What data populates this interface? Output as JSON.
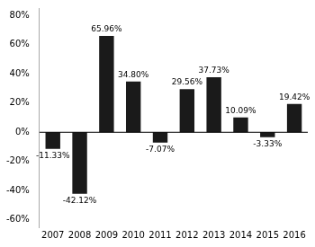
{
  "chart_data": {
    "type": "bar",
    "categories": [
      "2007",
      "2008",
      "2009",
      "2010",
      "2011",
      "2012",
      "2013",
      "2014",
      "2015",
      "2016"
    ],
    "values": [
      -11.33,
      -42.12,
      65.96,
      34.8,
      -7.07,
      29.56,
      37.73,
      10.09,
      -3.33,
      19.42
    ],
    "value_labels": [
      "-11.33%",
      "-42.12%",
      "65.96%",
      "34.80%",
      "-7.07%",
      "29.56%",
      "37.73%",
      "10.09%",
      "-3.33%",
      "19.42%"
    ],
    "data_labels": true,
    "color": "#1a1a1a",
    "ylim": [
      -65,
      85
    ],
    "yticks": [
      {
        "value": -60,
        "label": "-60%"
      },
      {
        "value": -40,
        "label": "-40%"
      },
      {
        "value": -20,
        "label": "-20%"
      },
      {
        "value": 0,
        "label": "0%"
      },
      {
        "value": 20,
        "label": "20%"
      },
      {
        "value": 40,
        "label": "40%"
      },
      {
        "value": 60,
        "label": "60%"
      },
      {
        "value": 80,
        "label": "80%"
      }
    ],
    "grid": false
  }
}
